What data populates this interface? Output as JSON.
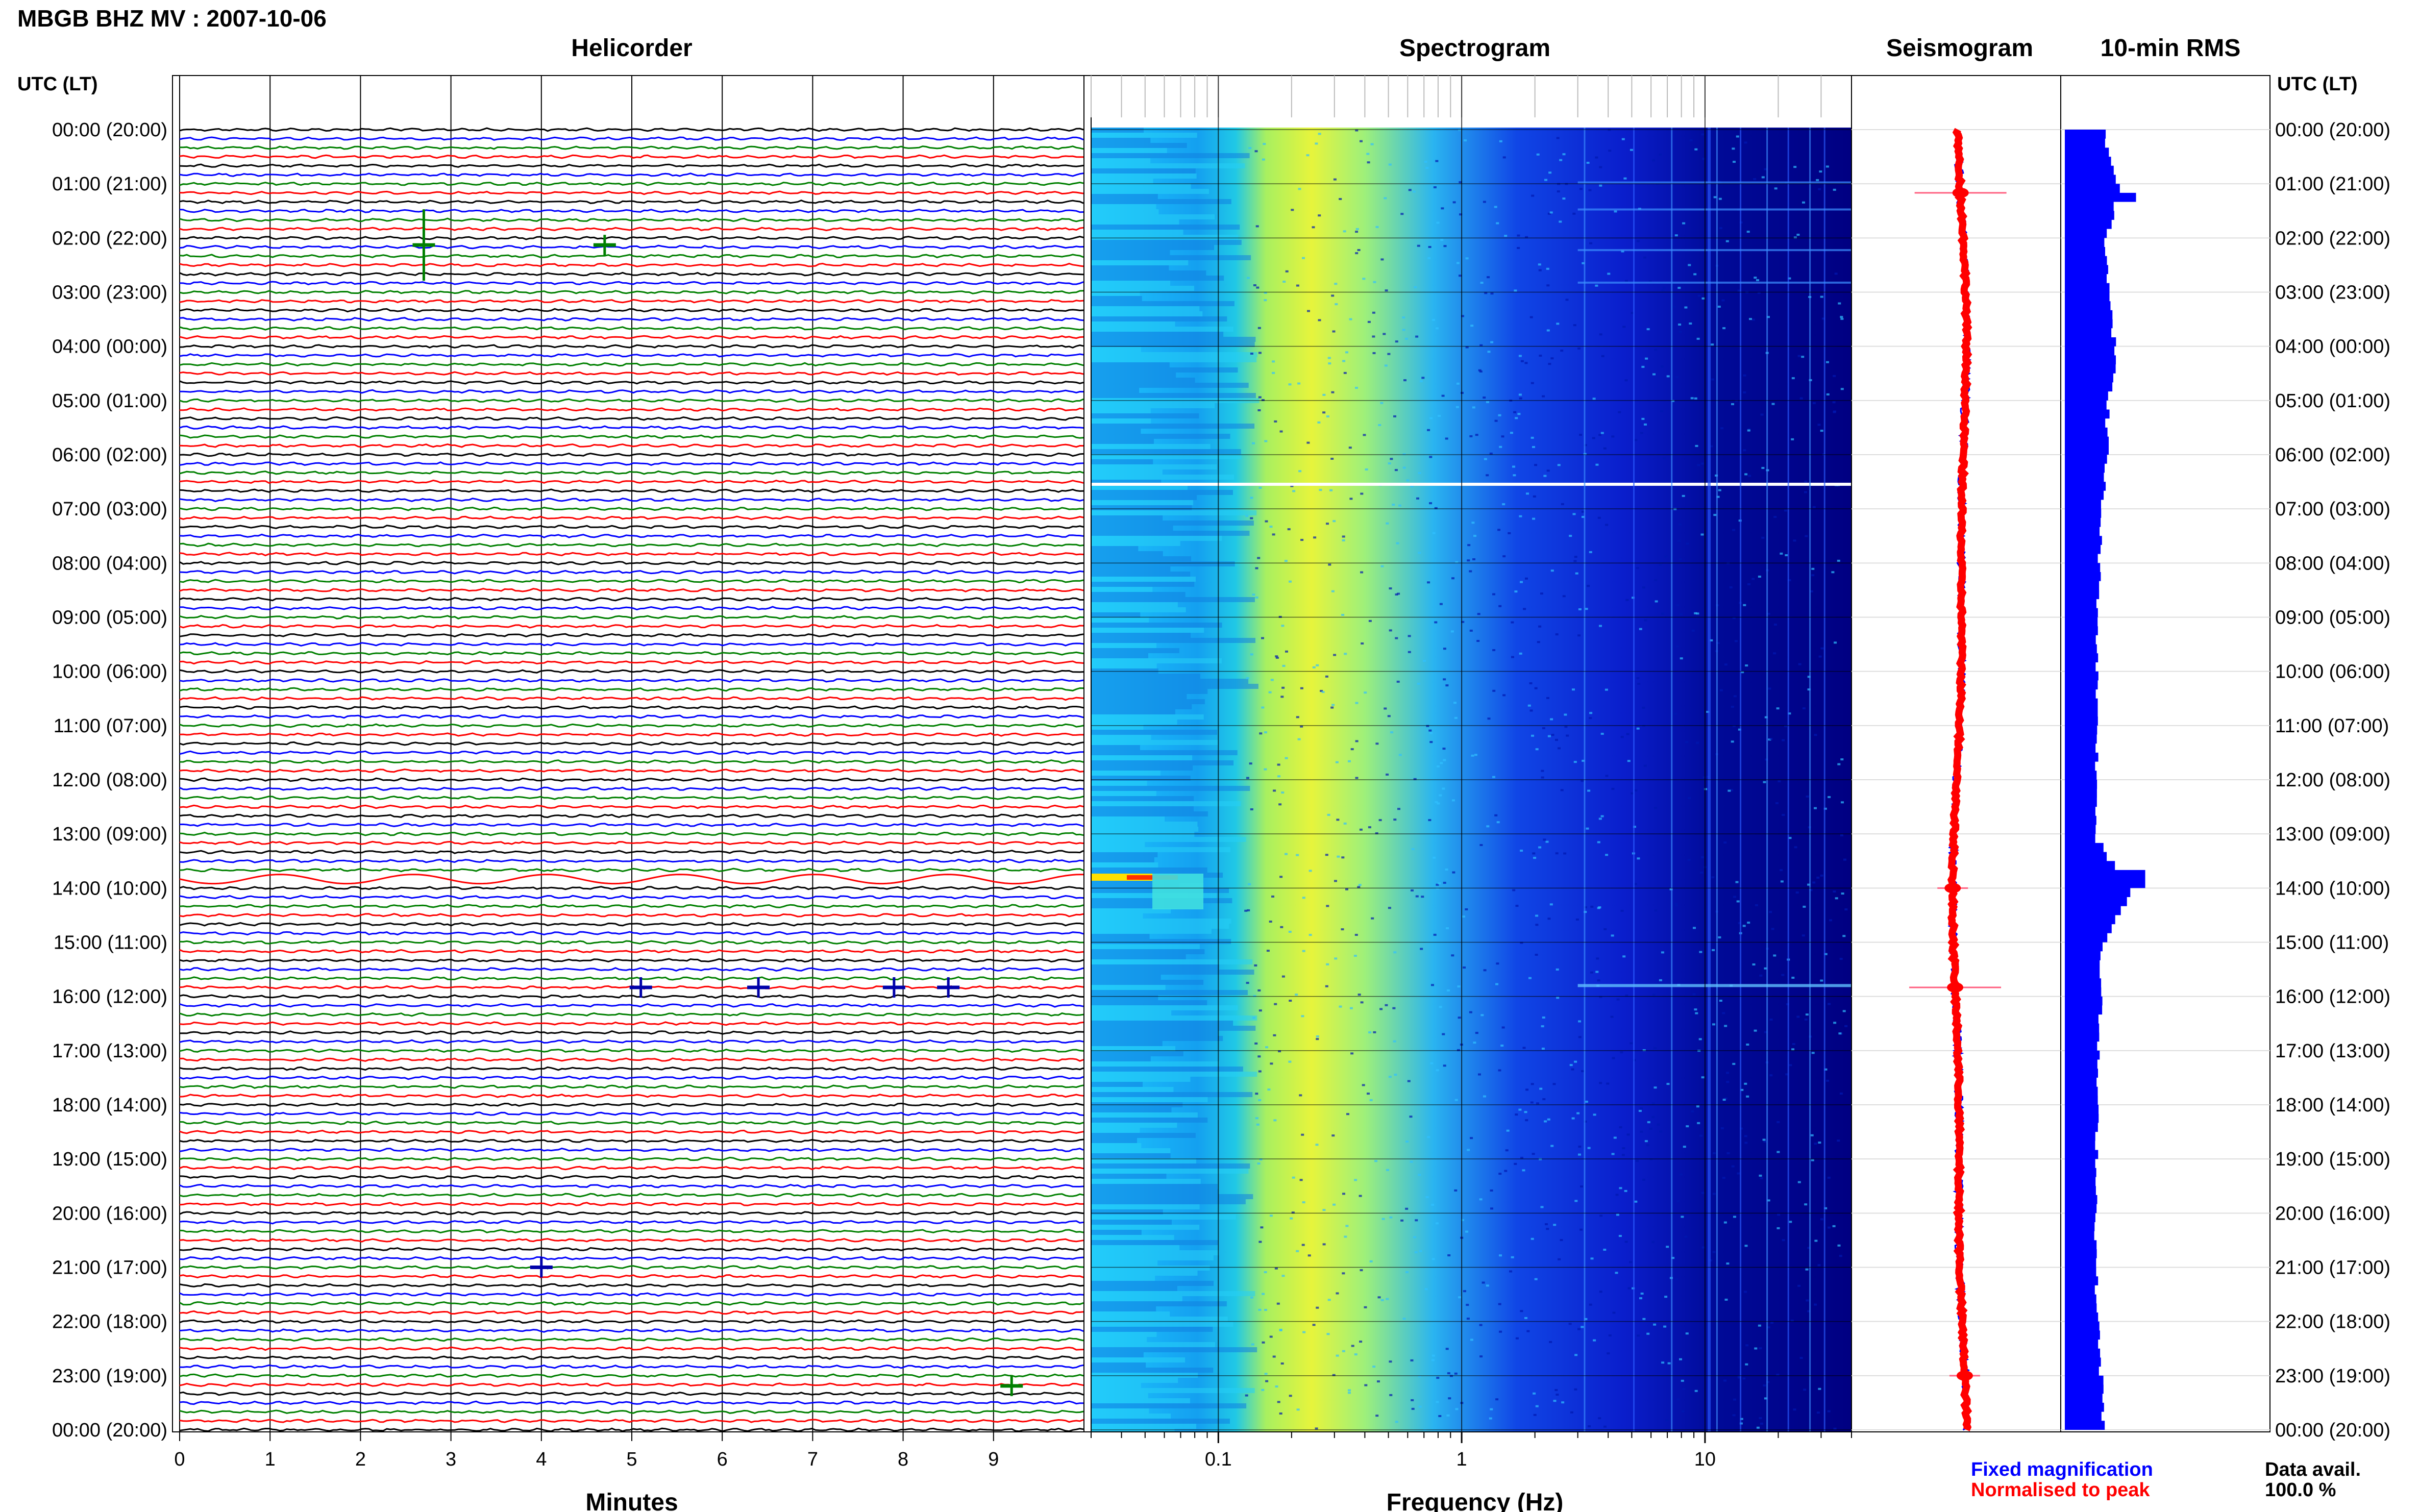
{
  "title": "MBGB BHZ MV : 2007-10-06",
  "panels": {
    "helicorder": "Helicorder",
    "spectrogram": "Spectrogram",
    "seismogram": "Seismogram",
    "rms": "10-min RMS"
  },
  "time_axis_header_left": "UTC (LT)",
  "time_axis_header_right": "UTC (LT)",
  "time_labels": [
    "00:00 (20:00)",
    "01:00 (21:00)",
    "02:00 (22:00)",
    "03:00 (23:00)",
    "04:00 (00:00)",
    "05:00 (01:00)",
    "06:00 (02:00)",
    "07:00 (03:00)",
    "08:00 (04:00)",
    "09:00 (05:00)",
    "10:00 (06:00)",
    "11:00 (07:00)",
    "12:00 (08:00)",
    "13:00 (09:00)",
    "14:00 (10:00)",
    "15:00 (11:00)",
    "16:00 (12:00)",
    "17:00 (13:00)",
    "18:00 (14:00)",
    "19:00 (15:00)",
    "20:00 (16:00)",
    "21:00 (17:00)",
    "22:00 (18:00)",
    "23:00 (19:00)",
    "00:00 (20:00)"
  ],
  "legend": {
    "fixed": "Fixed magnification",
    "normalised": "Normalised to peak",
    "fixed_color": "#0000ff",
    "normalised_color": "#ff0000"
  },
  "data_avail_label": "Data avail.",
  "data_avail_value": "100.0 %",
  "chart_data": [
    {
      "type": "line",
      "panel": "Helicorder",
      "xlabel": "Minutes",
      "x_ticks": [
        "0",
        "1",
        "2",
        "3",
        "4",
        "5",
        "6",
        "7",
        "8",
        "9"
      ],
      "xlim": [
        0,
        10
      ],
      "trace_colors": [
        "#000000",
        "#0000ff",
        "#008000",
        "#ff0000"
      ],
      "events": [
        {
          "time": "01:00",
          "minute": 2.7
        },
        {
          "time": "01:00",
          "minute": 4.7
        },
        {
          "time": "15:50",
          "minute": 5.1
        },
        {
          "time": "15:50",
          "minute": 6.4
        },
        {
          "time": "15:50",
          "minute": 7.9
        },
        {
          "time": "15:50",
          "minute": 8.5
        },
        {
          "time": "21:00",
          "minute": 4.0
        },
        {
          "time": "23:00",
          "minute": 9.2
        }
      ]
    },
    {
      "type": "heatmap",
      "panel": "Spectrogram",
      "xlabel": "Frequency (Hz)",
      "x_scale": "log",
      "x_ticks": [
        "0.1",
        "1",
        "10"
      ],
      "xlim": [
        0.03,
        40
      ],
      "peak_band_hz": [
        0.15,
        0.35
      ],
      "colormap": [
        "#000080",
        "#0000ff",
        "#00b4ff",
        "#00ffd0",
        "#c8ff3c",
        "#ffff00",
        "#ff8000",
        "#ff0000"
      ]
    },
    {
      "type": "line",
      "panel": "Seismogram",
      "series": [
        {
          "name": "Fixed magnification",
          "color": "#0000ff"
        },
        {
          "name": "Normalised to peak",
          "color": "#ff0000"
        }
      ],
      "spikes_at": [
        "01:10",
        "14:00",
        "15:50",
        "23:00"
      ]
    },
    {
      "type": "bar",
      "panel": "10-min RMS",
      "color": "#0000ff",
      "hours": [
        0,
        1,
        2,
        3,
        4,
        5,
        6,
        7,
        8,
        9,
        10,
        11,
        12,
        13,
        14,
        15,
        16,
        17,
        18,
        19,
        20,
        21,
        22,
        23,
        24
      ],
      "relative_rms": [
        0.85,
        1.2,
        0.9,
        1.0,
        1.1,
        0.95,
        0.9,
        0.8,
        0.75,
        0.72,
        0.7,
        0.72,
        0.68,
        0.7,
        1.45,
        0.82,
        0.78,
        0.72,
        0.7,
        0.7,
        0.68,
        0.68,
        0.72,
        0.8,
        0.85
      ]
    }
  ]
}
